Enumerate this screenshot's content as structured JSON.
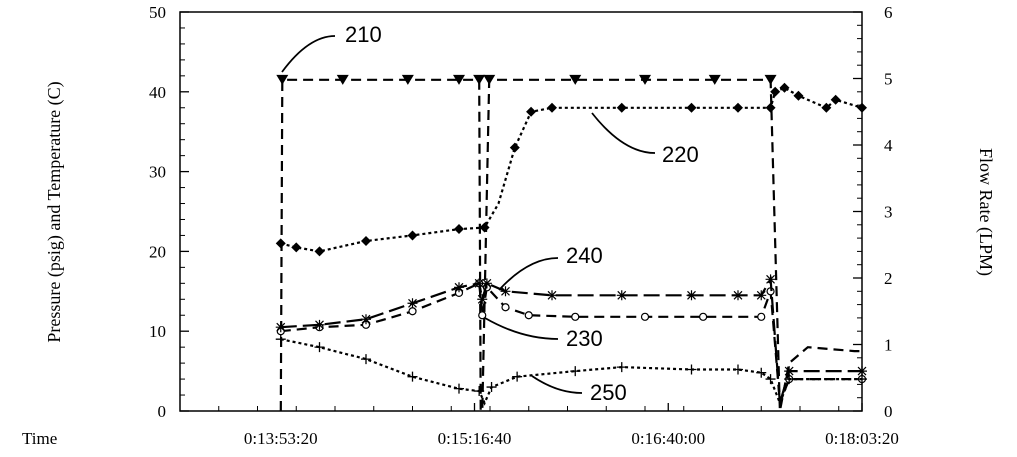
{
  "chart_data": {
    "type": "line",
    "title": "",
    "xlabel": "Time",
    "ylabel_left": "Pressure (psig) and Temperature (C)",
    "ylabel_right": "Flow Rate (LPM)",
    "xlim": [
      "0:13:10:00",
      "0:18:03:20"
    ],
    "ylim_left": [
      0,
      50
    ],
    "ylim_right": [
      0,
      6
    ],
    "x_ticks": [
      "0:13:53:20",
      "0:15:16:40",
      "0:16:40:00",
      "0:18:03:20"
    ],
    "y_ticks_left": [
      "0",
      "10",
      "20",
      "30",
      "40",
      "50"
    ],
    "y_ticks_right": [
      "0",
      "1",
      "2",
      "3",
      "4",
      "5",
      "6"
    ],
    "grid": false,
    "series": [
      {
        "name": "210",
        "axis": "left",
        "style": "dash",
        "marker": "triangle-down",
        "points": [
          [
            "0:13:53:20",
            0
          ],
          [
            "0:13:54:00",
            41.5
          ],
          [
            "0:14:20:00",
            41.5
          ],
          [
            "0:14:48:00",
            41.5
          ],
          [
            "0:15:10:00",
            41.5
          ],
          [
            "0:15:18:40",
            41.5
          ],
          [
            "0:15:19:20",
            0
          ],
          [
            "0:15:20:00",
            0
          ],
          [
            "0:15:23:00",
            41.5
          ],
          [
            "0:16:00:00",
            41.5
          ],
          [
            "0:16:30:00",
            41.5
          ],
          [
            "0:17:00:00",
            41.5
          ],
          [
            "0:17:24:00",
            41.5
          ],
          [
            "0:17:28:00",
            0
          ],
          [
            "0:17:32:00",
            6
          ],
          [
            "0:17:40:00",
            8
          ],
          [
            "0:18:00:00",
            7.5
          ],
          [
            "0:18:03:20",
            7.5
          ]
        ]
      },
      {
        "name": "220",
        "axis": "left",
        "style": "dot",
        "marker": "diamond",
        "points": [
          [
            "0:13:53:20",
            21
          ],
          [
            "0:14:00:00",
            20.5
          ],
          [
            "0:14:10:00",
            20
          ],
          [
            "0:14:30:00",
            21.3
          ],
          [
            "0:14:50:00",
            22
          ],
          [
            "0:15:10:00",
            22.8
          ],
          [
            "0:15:21:00",
            23
          ],
          [
            "0:15:27:00",
            26
          ],
          [
            "0:15:34:00",
            33
          ],
          [
            "0:15:41:00",
            37.5
          ],
          [
            "0:15:50:00",
            38
          ],
          [
            "0:16:20:00",
            38
          ],
          [
            "0:16:50:00",
            38
          ],
          [
            "0:17:10:00",
            38
          ],
          [
            "0:17:24:00",
            38
          ],
          [
            "0:17:26:00",
            40
          ],
          [
            "0:17:30:00",
            40.5
          ],
          [
            "0:17:36:00",
            39.5
          ],
          [
            "0:17:48:00",
            38
          ],
          [
            "0:17:52:00",
            39
          ],
          [
            "0:18:03:20",
            38
          ]
        ]
      },
      {
        "name": "230",
        "axis": "left",
        "style": "dash",
        "marker": "circle",
        "points": [
          [
            "0:13:53:20",
            10
          ],
          [
            "0:14:10:00",
            10.5
          ],
          [
            "0:14:30:00",
            10.8
          ],
          [
            "0:14:50:00",
            12.5
          ],
          [
            "0:15:10:00",
            14.8
          ],
          [
            "0:15:18:40",
            16
          ],
          [
            "0:15:20:00",
            12
          ],
          [
            "0:15:22:00",
            15.5
          ],
          [
            "0:15:30:00",
            13
          ],
          [
            "0:15:40:00",
            12
          ],
          [
            "0:16:00:00",
            11.8
          ],
          [
            "0:16:30:00",
            11.8
          ],
          [
            "0:16:55:00",
            11.8
          ],
          [
            "0:17:20:00",
            11.8
          ],
          [
            "0:17:24:00",
            15
          ],
          [
            "0:17:28:00",
            1
          ],
          [
            "0:17:32:00",
            4
          ],
          [
            "0:18:03:20",
            4
          ]
        ]
      },
      {
        "name": "240",
        "axis": "left",
        "style": "longdash",
        "marker": "asterisk",
        "points": [
          [
            "0:13:53:20",
            10.5
          ],
          [
            "0:14:10:00",
            10.8
          ],
          [
            "0:14:30:00",
            11.5
          ],
          [
            "0:14:50:00",
            13.5
          ],
          [
            "0:15:10:00",
            15.5
          ],
          [
            "0:15:18:40",
            16
          ],
          [
            "0:15:20:00",
            14
          ],
          [
            "0:15:22:00",
            16
          ],
          [
            "0:15:30:00",
            15
          ],
          [
            "0:15:50:00",
            14.5
          ],
          [
            "0:16:20:00",
            14.5
          ],
          [
            "0:16:50:00",
            14.5
          ],
          [
            "0:17:10:00",
            14.5
          ],
          [
            "0:17:20:00",
            14.5
          ],
          [
            "0:17:24:00",
            16.5
          ],
          [
            "0:17:28:00",
            1
          ],
          [
            "0:17:32:00",
            5
          ],
          [
            "0:18:03:20",
            5
          ]
        ]
      },
      {
        "name": "250",
        "axis": "left",
        "style": "dot",
        "marker": "plus",
        "points": [
          [
            "0:13:53:20",
            9
          ],
          [
            "0:14:10:00",
            8
          ],
          [
            "0:14:30:00",
            6.5
          ],
          [
            "0:14:50:00",
            4.3
          ],
          [
            "0:15:10:00",
            2.8
          ],
          [
            "0:15:18:40",
            2.5
          ],
          [
            "0:15:21:00",
            1
          ],
          [
            "0:15:24:00",
            3
          ],
          [
            "0:15:35:00",
            4.3
          ],
          [
            "0:16:00:00",
            5
          ],
          [
            "0:16:20:00",
            5.5
          ],
          [
            "0:16:50:00",
            5.2
          ],
          [
            "0:17:10:00",
            5.2
          ],
          [
            "0:17:20:00",
            4.8
          ],
          [
            "0:17:24:00",
            4
          ],
          [
            "0:17:28:00",
            1
          ],
          [
            "0:17:32:00",
            4
          ],
          [
            "0:18:03:20",
            4
          ]
        ]
      }
    ]
  }
}
